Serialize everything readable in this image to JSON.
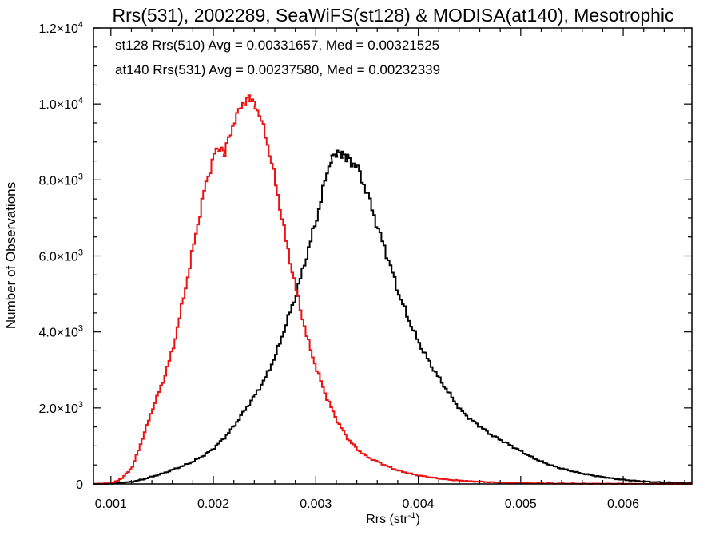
{
  "chart_data": {
    "type": "line",
    "title": "Rrs(531), 2002289, SeaWiFS(st128) & MODISA(at140), Mesotrophic",
    "xlabel": "Rrs (str",
    "xlabel_sup": "-1",
    "xlabel_close": ")",
    "ylabel": "Number of Observations",
    "xlim": [
      0.00083,
      0.00667
    ],
    "ylim": [
      0,
      12000
    ],
    "grid": false,
    "x_ticks": [
      {
        "value": 0.001,
        "label": "0.001"
      },
      {
        "value": 0.002,
        "label": "0.002"
      },
      {
        "value": 0.003,
        "label": "0.003"
      },
      {
        "value": 0.004,
        "label": "0.004"
      },
      {
        "value": 0.005,
        "label": "0.005"
      },
      {
        "value": 0.006,
        "label": "0.006"
      }
    ],
    "y_ticks": [
      {
        "value": 0,
        "mant": "0",
        "exp": ""
      },
      {
        "value": 2000,
        "mant": "2.0×10",
        "exp": "3"
      },
      {
        "value": 4000,
        "mant": "4.0×10",
        "exp": "3"
      },
      {
        "value": 6000,
        "mant": "6.0×10",
        "exp": "3"
      },
      {
        "value": 8000,
        "mant": "8.0×10",
        "exp": "3"
      },
      {
        "value": 10000,
        "mant": "1.0×10",
        "exp": "4"
      },
      {
        "value": 12000,
        "mant": "1.2×10",
        "exp": "4"
      }
    ],
    "legend": [
      {
        "text": "st128 Rrs(510) Avg = 0.00331657, Med = 0.00321525",
        "color": "#000000"
      },
      {
        "text": "at140 Rrs(531) Avg = 0.00237580, Med = 0.00232339",
        "color": "#ee1111"
      }
    ],
    "series": [
      {
        "color": "#000000",
        "x": [
          0.00083,
          0.001,
          0.0011,
          0.0012,
          0.0013,
          0.0014,
          0.0015,
          0.0016,
          0.0017,
          0.0018,
          0.0019,
          0.002,
          0.0021,
          0.0022,
          0.0023,
          0.0024,
          0.0025,
          0.0026,
          0.0027,
          0.0028,
          0.0029,
          0.003,
          0.0031,
          0.00315,
          0.0032,
          0.00325,
          0.0033,
          0.0034,
          0.0035,
          0.0036,
          0.0037,
          0.0038,
          0.0039,
          0.004,
          0.0041,
          0.0042,
          0.0043,
          0.0044,
          0.0045,
          0.0046,
          0.0047,
          0.0048,
          0.0049,
          0.005,
          0.0051,
          0.0052,
          0.0053,
          0.0054,
          0.0055,
          0.0056,
          0.0057,
          0.0058,
          0.0059,
          0.006,
          0.0061,
          0.0062,
          0.0063,
          0.0064,
          0.0065,
          0.00667
        ],
        "y": [
          0,
          10,
          30,
          60,
          120,
          200,
          280,
          380,
          480,
          600,
          760,
          950,
          1220,
          1550,
          1950,
          2350,
          2800,
          3400,
          4200,
          5000,
          6000,
          7000,
          8200,
          8650,
          8750,
          8700,
          8600,
          8300,
          7600,
          6700,
          5900,
          5000,
          4300,
          3700,
          3200,
          2750,
          2350,
          1950,
          1700,
          1500,
          1300,
          1150,
          1000,
          850,
          700,
          580,
          480,
          400,
          330,
          270,
          220,
          180,
          140,
          110,
          85,
          65,
          50,
          40,
          30,
          20
        ]
      },
      {
        "color": "#ee1111",
        "x": [
          0.00083,
          0.001,
          0.0011,
          0.0012,
          0.0013,
          0.0014,
          0.0015,
          0.0016,
          0.0017,
          0.0018,
          0.0019,
          0.002,
          0.00205,
          0.0021,
          0.0022,
          0.0023,
          0.00235,
          0.0024,
          0.0025,
          0.0026,
          0.0027,
          0.0028,
          0.0029,
          0.003,
          0.0031,
          0.0032,
          0.0033,
          0.0034,
          0.0035,
          0.0036,
          0.0037,
          0.0038,
          0.0039,
          0.004,
          0.0041,
          0.0042,
          0.0043,
          0.0044,
          0.0045,
          0.0046,
          0.0047,
          0.0048,
          0.0049,
          0.005,
          0.0052,
          0.0054,
          0.0056,
          0.0058,
          0.006,
          0.0062,
          0.0064,
          0.00667
        ],
        "y": [
          0,
          20,
          150,
          450,
          1200,
          2000,
          2700,
          3600,
          4900,
          6300,
          7700,
          8700,
          8800,
          8700,
          9600,
          10100,
          10200,
          10000,
          9200,
          7900,
          6400,
          5100,
          3900,
          3000,
          2250,
          1650,
          1200,
          900,
          700,
          580,
          450,
          350,
          280,
          220,
          180,
          140,
          110,
          90,
          70,
          60,
          45,
          35,
          28,
          22,
          15,
          10,
          7,
          5,
          3,
          2,
          1,
          0
        ]
      }
    ]
  }
}
